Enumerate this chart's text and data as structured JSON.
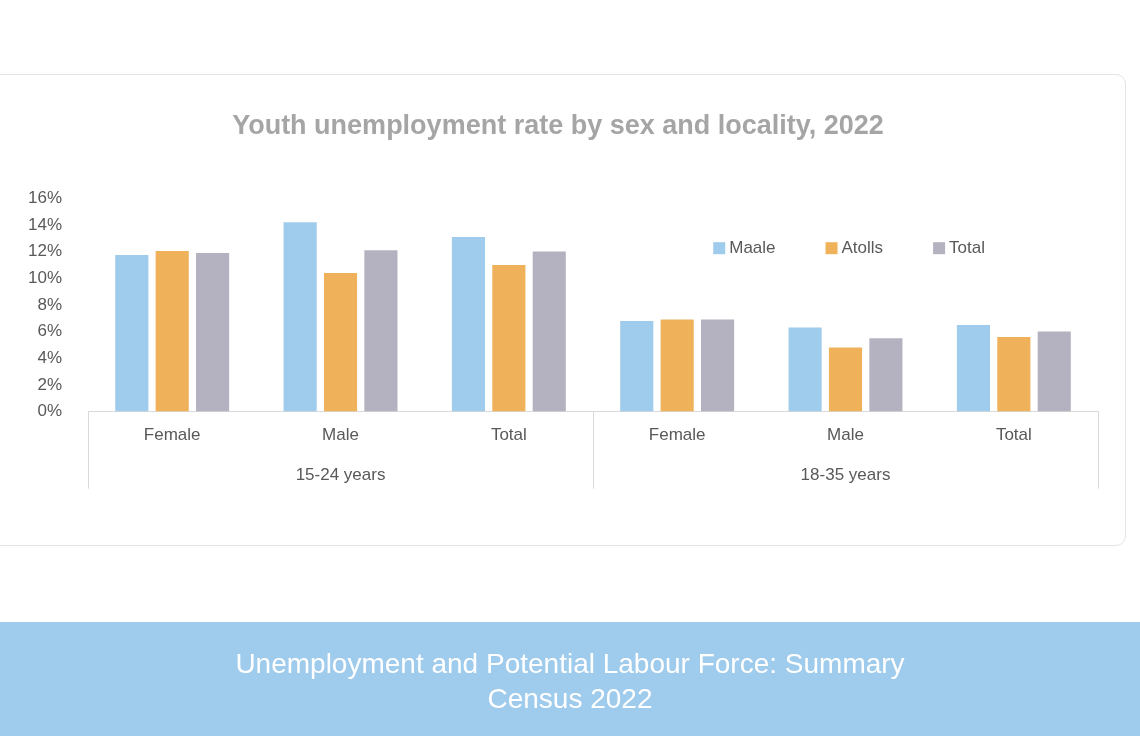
{
  "chart_data": {
    "type": "bar",
    "title": "Youth unemployment rate by sex and locality, 2022",
    "categories": [
      "Female",
      "Male",
      "Total",
      "Female",
      "Male",
      "Total"
    ],
    "series": [
      {
        "name": "Maale",
        "color": "#9fcbec",
        "values": [
          11.75,
          14.2,
          13.1,
          6.8,
          6.3,
          6.5
        ]
      },
      {
        "name": "Atolls",
        "color": "#efb25a",
        "values": [
          12.05,
          10.4,
          11.0,
          6.9,
          4.8,
          5.6
        ]
      },
      {
        "name": "Total",
        "color": "#b4b2c1",
        "values": [
          11.9,
          12.1,
          12.0,
          6.9,
          5.5,
          6.0
        ]
      }
    ],
    "ylim": [
      0,
      16
    ],
    "yticks": [
      {
        "value": 0,
        "label": "0%"
      },
      {
        "value": 2,
        "label": "2%"
      },
      {
        "value": 4,
        "label": "4%"
      },
      {
        "value": 6,
        "label": "6%"
      },
      {
        "value": 8,
        "label": "8%"
      },
      {
        "value": 10,
        "label": "10%"
      },
      {
        "value": 12,
        "label": "12%"
      },
      {
        "value": 14,
        "label": "14%"
      },
      {
        "value": 16,
        "label": "16%"
      }
    ],
    "grid": false,
    "legend": "top right",
    "annotations": [
      "15-24 years",
      "18-35 years",
      "Unemployment and Potential Labour Force: Summary",
      "Census 2022"
    ]
  }
}
